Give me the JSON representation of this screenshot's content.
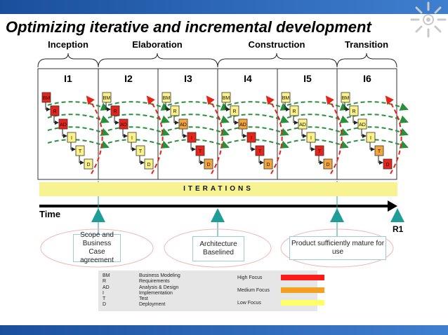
{
  "title": "Optimizing iterative and incremental development",
  "phases": [
    "Inception",
    "Elaboration",
    "Construction",
    "Transition"
  ],
  "iterations": [
    "I1",
    "I2",
    "I3",
    "I4",
    "I5",
    "I6"
  ],
  "iterations_band": "ITERATIONS",
  "time_label": "Time",
  "release_label": "R1",
  "step_labels": [
    "BM",
    "R",
    "AD",
    "I",
    "T",
    "D"
  ],
  "milestones": [
    "Scope and Business Case agreement",
    "Architecture Baselined",
    "Product sufficiently mature for use"
  ],
  "legend": {
    "abbreviations": [
      "BM",
      "R",
      "AD",
      "I",
      "T",
      "D"
    ],
    "descriptions": [
      "Business Modeling",
      "Requirements",
      "Analysis & Design",
      "Implementation",
      "Test",
      "Deployment"
    ],
    "focus": [
      {
        "label": "High Focus",
        "color": "#ff1a1a"
      },
      {
        "label": "Medium Focus",
        "color": "#f4a023"
      },
      {
        "label": "Low Focus",
        "color": "#ffff66"
      }
    ]
  },
  "colors": {
    "red": "#e8231a",
    "orange": "#f3a53a",
    "yellow": "#fdf28a",
    "teal": "#1f9d96",
    "green": "#2a8f3c",
    "blue_bar": "#1a4f9c"
  },
  "focus_matrix": [
    [
      "red",
      "yellow",
      "yellow",
      "yellow",
      "yellow",
      "yellow"
    ],
    [
      "red",
      "red",
      "yellow",
      "yellow",
      "yellow",
      "yellow"
    ],
    [
      "red",
      "red",
      "orange",
      "orange",
      "yellow",
      "yellow"
    ],
    [
      "yellow",
      "yellow",
      "red",
      "red",
      "yellow",
      "yellow"
    ],
    [
      "yellow",
      "yellow",
      "red",
      "red",
      "red",
      "orange"
    ],
    [
      "yellow",
      "yellow",
      "orange",
      "orange",
      "orange",
      "red"
    ]
  ]
}
